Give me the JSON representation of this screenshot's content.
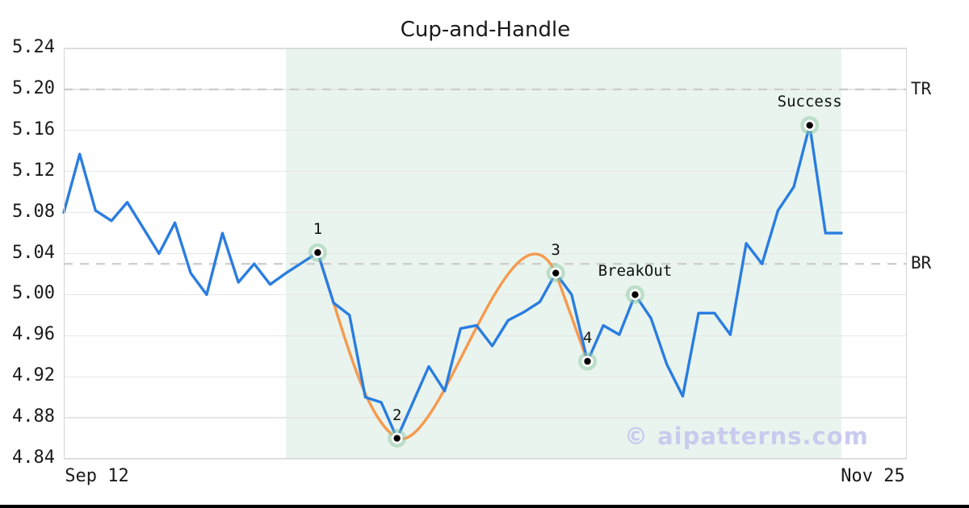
{
  "chart_data": {
    "type": "line",
    "title": "Cup-and-Handle",
    "ylim": [
      4.84,
      5.24
    ],
    "y_ticks": [
      "5.24",
      "5.20",
      "5.16",
      "5.12",
      "5.08",
      "5.04",
      "5.00",
      "4.96",
      "4.92",
      "4.88",
      "4.84"
    ],
    "x_tick_labels": [
      "Sep 12",
      "Nov 25"
    ],
    "series": [
      {
        "name": "price",
        "color": "#2a7de1",
        "values": [
          5.08,
          5.137,
          5.082,
          5.072,
          5.09,
          5.065,
          5.04,
          5.07,
          5.021,
          5.0,
          5.06,
          5.012,
          5.03,
          5.01,
          5.021,
          5.031,
          5.041,
          4.992,
          4.98,
          4.9,
          4.895,
          4.86,
          4.895,
          4.93,
          4.906,
          4.967,
          4.97,
          4.95,
          4.975,
          4.983,
          4.993,
          5.021,
          5.0,
          4.935,
          4.97,
          4.961,
          5.0,
          4.977,
          4.932,
          4.901,
          4.982,
          4.982,
          4.961,
          5.05,
          5.03,
          5.082,
          5.105,
          5.165,
          5.06,
          5.06
        ]
      }
    ],
    "pattern_overlay": {
      "name": "cup-and-handle-outline",
      "color": "#f79a4d",
      "anchor_indices": [
        16,
        21,
        31,
        33
      ]
    },
    "markers": [
      {
        "label": "1",
        "name": "cup-left-rim",
        "index": 16,
        "value": 5.041
      },
      {
        "label": "2",
        "name": "cup-bottom",
        "index": 21,
        "value": 4.86
      },
      {
        "label": "3",
        "name": "cup-right-rim",
        "index": 31,
        "value": 5.021
      },
      {
        "label": "4",
        "name": "handle-low",
        "index": 33,
        "value": 4.935
      },
      {
        "label": "BreakOut",
        "name": "breakout",
        "index": 36,
        "value": 5.0
      },
      {
        "label": "Success",
        "name": "success",
        "index": 47,
        "value": 5.165
      }
    ],
    "hlines": [
      {
        "label": "TR",
        "value": 5.2
      },
      {
        "label": "BR",
        "value": 5.03
      }
    ],
    "shaded_region": {
      "start_index": 14,
      "end_index": 49,
      "color": "#e9f4ee"
    },
    "watermark": "© aipatterns.com",
    "colors": {
      "price_line": "#2a7de1",
      "pattern_line": "#f79a4d",
      "marker_halo": "#8dc7a4",
      "marker_dot": "#000000",
      "grid": "#e6e6e6",
      "dashed_line": "#cccccc",
      "watermark": "#c9cbee",
      "shaded_region": "#e9f4ee"
    }
  }
}
